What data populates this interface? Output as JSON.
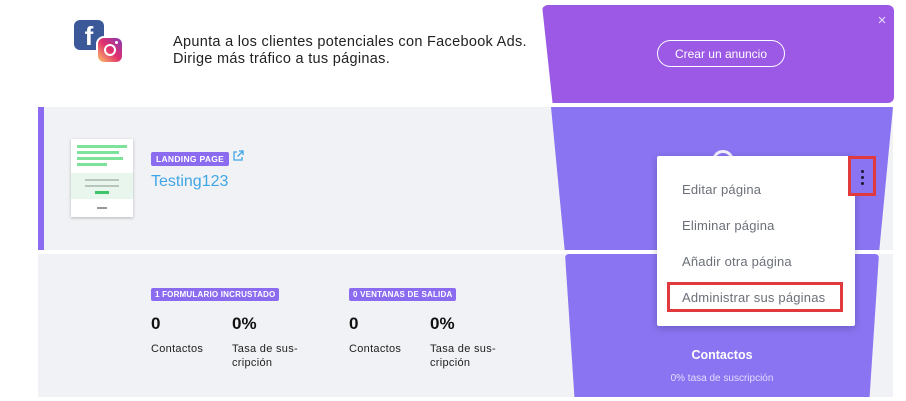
{
  "banner": {
    "icons": [
      "facebook-icon",
      "instagram-icon"
    ],
    "text": "Apunta a los clientes potenciales con Facebook Ads. Dirige más tráfico a tus páginas.",
    "button_label": "Crear un anuncio",
    "close_glyph": "×"
  },
  "landing_page": {
    "badge": "LANDING PAGE",
    "name": "Testing123"
  },
  "stats": {
    "embedded": {
      "badge": "1 FORMULARIO INCRUSTADO",
      "contacts_value": "0",
      "contacts_label": "Contactos",
      "rate_value": "0%",
      "rate_label_1": "Tasa de sus-",
      "rate_label_2": "cripción"
    },
    "exit": {
      "badge": "0 VENTANAS DE SALIDA",
      "contacts_value": "0",
      "contacts_label": "Contactos",
      "rate_value": "0%",
      "rate_label_1": "Tasa de sus-",
      "rate_label_2": "cripción"
    }
  },
  "funnel": {
    "bottom_title": "Contactos",
    "bottom_sub": "0% tasa de suscripción"
  },
  "menu": {
    "items": [
      "Editar página",
      "Eliminar página",
      "Añadir otra página",
      "Administrar sus páginas"
    ]
  },
  "colors": {
    "accent": "#8b6cf0",
    "funnel_top": "#9b59e6",
    "highlight": "#e0393e",
    "link": "#3fa6e6"
  }
}
